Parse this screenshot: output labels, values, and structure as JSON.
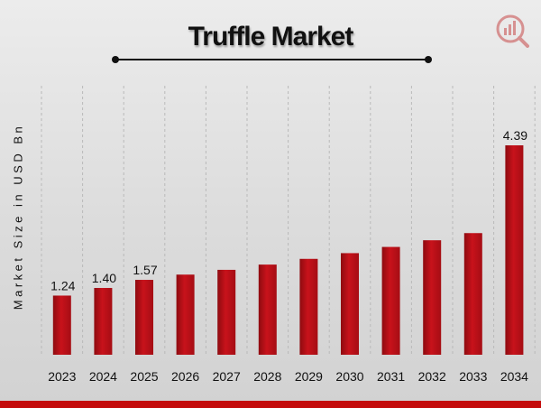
{
  "chart_data": {
    "type": "bar",
    "title": "Truffle Market",
    "ylabel": "Market Size in USD Bn",
    "xlabel": "",
    "categories": [
      "2023",
      "2024",
      "2025",
      "2026",
      "2027",
      "2028",
      "2029",
      "2030",
      "2031",
      "2032",
      "2033",
      "2034"
    ],
    "values": [
      1.24,
      1.4,
      1.57,
      1.68,
      1.78,
      1.89,
      2.01,
      2.13,
      2.26,
      2.4,
      2.55,
      4.39
    ],
    "data_labels": [
      "1.24",
      "1.40",
      "1.57",
      "",
      "",
      "",
      "",
      "",
      "",
      "",
      "",
      "4.39"
    ],
    "bar_color": "#c8121b",
    "grid": "vertical-dashed",
    "legend": "none"
  },
  "colors": {
    "accent": "#c40a0a",
    "background": "#dcdcdc"
  },
  "logo_icon": "market-research-logo-icon"
}
